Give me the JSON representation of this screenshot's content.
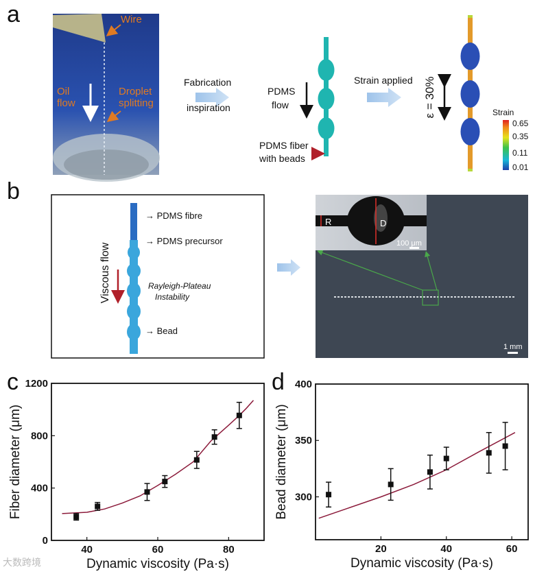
{
  "panel_labels": {
    "a": "a",
    "b": "b",
    "c": "c",
    "d": "d"
  },
  "panel_a": {
    "photo": {
      "wire": "Wire",
      "oil_line1": "Oil",
      "oil_line2": "flow",
      "droplet_line1": "Droplet",
      "droplet_line2": "splitting"
    },
    "fabrication_line1": "Fabrication",
    "fabrication_line2": "inspiration",
    "pdms_flow_line1": "PDMS",
    "pdms_flow_line2": "flow",
    "fiber_label_line1": "PDMS fiber",
    "fiber_label_line2": "with beads",
    "strain_applied": "Strain applied",
    "epsilon": "ε = 30%",
    "colorbar": {
      "title": "Strain",
      "ticks": [
        "0.65",
        "0.35",
        "0.11",
        "0.01"
      ]
    },
    "colors": {
      "fiber": "#1fb5b0",
      "strained_fiber": "#e39a2a",
      "bead": "#2a4fb5"
    }
  },
  "panel_b": {
    "labels": {
      "fibre": "PDMS fibre",
      "precursor": "PDMS precursor",
      "rp_line1": "Rayleigh-Plateau",
      "rp_line2": "Instability",
      "bead": "Bead",
      "viscous_flow": "Viscous flow"
    },
    "inset": {
      "r": "R",
      "d": "D",
      "scale": "100 μm"
    },
    "photo_scale": "1 mm"
  },
  "watermark": "大数跨境",
  "chart_data": [
    {
      "type": "scatter",
      "panel": "c",
      "xlabel": "Dynamic viscosity (Pa·s)",
      "ylabel": "Fiber diameter (μm)",
      "xlim": [
        30,
        90
      ],
      "ylim": [
        0,
        1200
      ],
      "xticks": [
        40,
        60,
        80
      ],
      "yticks": [
        0,
        400,
        800,
        1200
      ],
      "grid": false,
      "points": [
        {
          "x": 37,
          "y": 180,
          "err": 25
        },
        {
          "x": 43,
          "y": 260,
          "err": 30
        },
        {
          "x": 57,
          "y": 370,
          "err": 65
        },
        {
          "x": 62,
          "y": 450,
          "err": 45
        },
        {
          "x": 71,
          "y": 615,
          "err": 65
        },
        {
          "x": 76,
          "y": 790,
          "err": 55
        },
        {
          "x": 83,
          "y": 955,
          "err": 100
        }
      ],
      "fit_curve": [
        [
          33,
          205
        ],
        [
          40,
          215
        ],
        [
          45,
          240
        ],
        [
          50,
          285
        ],
        [
          55,
          340
        ],
        [
          60,
          420
        ],
        [
          65,
          505
        ],
        [
          70,
          600
        ],
        [
          75,
          760
        ],
        [
          80,
          880
        ],
        [
          83,
          955
        ],
        [
          85,
          1010
        ],
        [
          87,
          1070
        ]
      ],
      "fit_color": "#8b1a3a"
    },
    {
      "type": "scatter",
      "panel": "d",
      "xlabel": "Dynamic viscosity (Pa·s)",
      "ylabel": "Bead diameter (μm)",
      "xlim": [
        0,
        65
      ],
      "ylim": [
        262,
        400
      ],
      "xticks": [
        20,
        40,
        60
      ],
      "yticks": [
        300,
        350,
        400
      ],
      "grid": false,
      "points": [
        {
          "x": 4,
          "y": 302,
          "err": 11
        },
        {
          "x": 23,
          "y": 311,
          "err": 14
        },
        {
          "x": 35,
          "y": 322,
          "err": 15
        },
        {
          "x": 40,
          "y": 334,
          "err": 10
        },
        {
          "x": 53,
          "y": 339,
          "err": 18
        },
        {
          "x": 58,
          "y": 345,
          "err": 21
        }
      ],
      "fit_curve": [
        [
          1,
          281
        ],
        [
          10,
          290
        ],
        [
          20,
          300
        ],
        [
          30,
          311
        ],
        [
          40,
          324
        ],
        [
          50,
          340
        ],
        [
          61,
          357
        ]
      ],
      "fit_color": "#8b1a3a"
    }
  ]
}
